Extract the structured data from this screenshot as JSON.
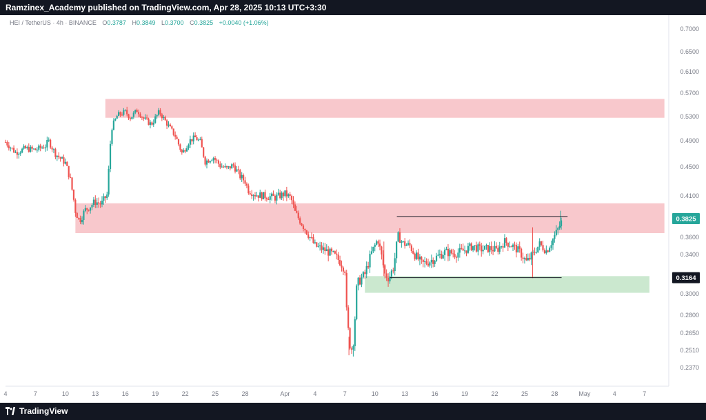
{
  "header": {
    "publisher_text": "Ramzinex_Academy published on TradingView.com, Apr 28, 2025 10:13 UTC+3:30"
  },
  "footer": {
    "brand": "TradingView"
  },
  "legend": {
    "symbol": "HEI / TetherUS · 4h · BINANCE",
    "o_label": "O",
    "o": "0.3787",
    "h_label": "H",
    "h": "0.3849",
    "l_label": "L",
    "l": "0.3700",
    "c_label": "C",
    "c": "0.3825",
    "change": "+0.0040 (+1.06%)"
  },
  "colors": {
    "up": "#26a69a",
    "down": "#ef5350",
    "resistance_zone": "#f8c8cc",
    "support_zone": "#cbe8cf",
    "bar_bg": "#131722"
  },
  "chart_data": {
    "type": "candlestick",
    "y_ticks": [
      "0.7000",
      "0.6500",
      "0.6100",
      "0.5700",
      "0.5300",
      "0.4900",
      "0.4500",
      "0.4100",
      "0.3825",
      "0.3600",
      "0.3400",
      "0.3164",
      "0.3000",
      "0.2800",
      "0.2650",
      "0.2510",
      "0.2370"
    ],
    "price_labels": [
      {
        "text": "0.3825",
        "price": 0.3825,
        "bg": "#26a69a",
        "fg": "#ffffff"
      },
      {
        "text": "0.3164",
        "price": 0.3164,
        "bg": "#131722",
        "fg": "#ffffff"
      }
    ],
    "x_ticks": [
      {
        "label": "4",
        "day": 4
      },
      {
        "label": "7",
        "day": 7
      },
      {
        "label": "10",
        "day": 10
      },
      {
        "label": "13",
        "day": 13
      },
      {
        "label": "16",
        "day": 16
      },
      {
        "label": "19",
        "day": 19
      },
      {
        "label": "22",
        "day": 22
      },
      {
        "label": "25",
        "day": 25
      },
      {
        "label": "28",
        "day": 28
      },
      {
        "label": "Apr",
        "day": 32
      },
      {
        "label": "4",
        "day": 35
      },
      {
        "label": "7",
        "day": 38
      },
      {
        "label": "10",
        "day": 41
      },
      {
        "label": "13",
        "day": 44
      },
      {
        "label": "16",
        "day": 47
      },
      {
        "label": "19",
        "day": 50
      },
      {
        "label": "22",
        "day": 53
      },
      {
        "label": "25",
        "day": 56
      },
      {
        "label": "28",
        "day": 59
      },
      {
        "label": "May",
        "day": 62
      },
      {
        "label": "4",
        "day": 65
      },
      {
        "label": "7",
        "day": 68
      }
    ],
    "zones": [
      {
        "type": "resistance",
        "from_day": 14.0,
        "to_day": 70.0,
        "top": 0.56,
        "bottom": 0.528
      },
      {
        "type": "resistance",
        "from_day": 11.0,
        "to_day": 70.0,
        "top": 0.401,
        "bottom": 0.365
      },
      {
        "type": "support",
        "from_day": 40.0,
        "to_day": 68.5,
        "top": 0.318,
        "bottom": 0.301
      }
    ],
    "lines": [
      {
        "from_day": 43.2,
        "to_day": 60.3,
        "price": 0.385
      },
      {
        "from_day": 42.5,
        "to_day": 59.7,
        "price": 0.3164
      }
    ],
    "path": [
      [
        4.0,
        0.488
      ],
      [
        5.0,
        0.472
      ],
      [
        6.0,
        0.478
      ],
      [
        7.0,
        0.476
      ],
      [
        8.0,
        0.482
      ],
      [
        8.3,
        0.49
      ],
      [
        9.0,
        0.47
      ],
      [
        10.0,
        0.456
      ],
      [
        10.5,
        0.432
      ],
      [
        11.0,
        0.392
      ],
      [
        11.4,
        0.38
      ],
      [
        12.0,
        0.393
      ],
      [
        13.0,
        0.403
      ],
      [
        13.6,
        0.4
      ],
      [
        14.2,
        0.412
      ],
      [
        14.6,
        0.51
      ],
      [
        15.2,
        0.532
      ],
      [
        16.0,
        0.538
      ],
      [
        16.5,
        0.528
      ],
      [
        17.2,
        0.541
      ],
      [
        17.8,
        0.527
      ],
      [
        18.6,
        0.517
      ],
      [
        19.4,
        0.538
      ],
      [
        20.3,
        0.515
      ],
      [
        21.0,
        0.498
      ],
      [
        21.7,
        0.47
      ],
      [
        22.4,
        0.49
      ],
      [
        23.0,
        0.495
      ],
      [
        23.5,
        0.488
      ],
      [
        24.0,
        0.458
      ],
      [
        24.8,
        0.465
      ],
      [
        25.5,
        0.452
      ],
      [
        26.2,
        0.447
      ],
      [
        26.8,
        0.453
      ],
      [
        27.5,
        0.437
      ],
      [
        28.0,
        0.43
      ],
      [
        28.3,
        0.418
      ],
      [
        29.0,
        0.412
      ],
      [
        30.0,
        0.41
      ],
      [
        31.0,
        0.408
      ],
      [
        32.0,
        0.413
      ],
      [
        32.6,
        0.407
      ],
      [
        33.0,
        0.39
      ],
      [
        34.0,
        0.37
      ],
      [
        35.0,
        0.35
      ],
      [
        36.0,
        0.345
      ],
      [
        36.8,
        0.34
      ],
      [
        37.5,
        0.333
      ],
      [
        38.0,
        0.325
      ],
      [
        38.2,
        0.275
      ],
      [
        38.6,
        0.25
      ],
      [
        38.9,
        0.262
      ],
      [
        39.2,
        0.31
      ],
      [
        40.0,
        0.32
      ],
      [
        40.7,
        0.343
      ],
      [
        41.3,
        0.358
      ],
      [
        42.0,
        0.32
      ],
      [
        42.4,
        0.316
      ],
      [
        42.9,
        0.328
      ],
      [
        43.3,
        0.362
      ],
      [
        43.8,
        0.353
      ],
      [
        44.5,
        0.35
      ],
      [
        45.0,
        0.34
      ],
      [
        45.7,
        0.33
      ],
      [
        46.4,
        0.333
      ],
      [
        47.0,
        0.336
      ],
      [
        48.0,
        0.343
      ],
      [
        49.0,
        0.341
      ],
      [
        50.0,
        0.345
      ],
      [
        50.8,
        0.35
      ],
      [
        51.5,
        0.346
      ],
      [
        52.5,
        0.347
      ],
      [
        53.2,
        0.345
      ],
      [
        54.0,
        0.355
      ],
      [
        54.8,
        0.35
      ],
      [
        55.5,
        0.343
      ],
      [
        56.2,
        0.332
      ],
      [
        56.8,
        0.34
      ],
      [
        57.5,
        0.352
      ],
      [
        58.2,
        0.344
      ],
      [
        58.8,
        0.357
      ],
      [
        59.4,
        0.371
      ],
      [
        59.8,
        0.382
      ]
    ]
  }
}
